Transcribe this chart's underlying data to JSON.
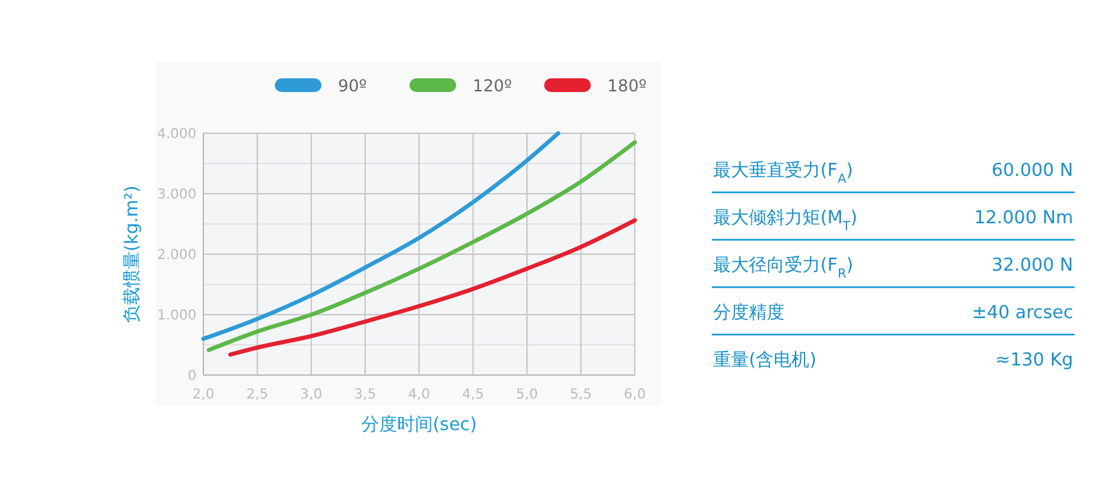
{
  "chart_data": [
    {
      "type": "line",
      "xlabel": "分度时间(sec)",
      "ylabel": "负载惯量(kg.m²)",
      "xlim": [
        2,
        6
      ],
      "ylim": [
        0,
        4000
      ],
      "xticks": [
        {
          "value": 2,
          "label": "2,0"
        },
        {
          "value": 2.5,
          "label": "2,5"
        },
        {
          "value": 3,
          "label": "3,0"
        },
        {
          "value": 3.5,
          "label": "3,5"
        },
        {
          "value": 4,
          "label": "4,0"
        },
        {
          "value": 4.5,
          "label": "4,5"
        },
        {
          "value": 5,
          "label": "5,0"
        },
        {
          "value": 5.5,
          "label": "5,5"
        },
        {
          "value": 6,
          "label": "6,0"
        }
      ],
      "yticks": [
        0,
        {
          "value": 500,
          "label": null
        },
        {
          "value": 1000,
          "label": "1.000"
        },
        {
          "value": 1500,
          "label": null
        },
        {
          "value": 2000,
          "label": "2.000"
        },
        {
          "value": 2500,
          "label": null
        },
        {
          "value": 3000,
          "label": "3.000"
        },
        {
          "value": 3500,
          "label": null
        },
        {
          "value": 4000,
          "label": "4.000"
        }
      ],
      "grid": true,
      "legend": "top right",
      "marker": "none",
      "line_style": "solid",
      "series": [
        {
          "name": "90º",
          "color": "#2e9bd6",
          "x": [
            2.0,
            2.5,
            3.0,
            3.5,
            4.0,
            4.5,
            5.0,
            5.29
          ],
          "values": [
            600,
            930,
            1320,
            1780,
            2270,
            2860,
            3550,
            4000
          ]
        },
        {
          "name": "120º",
          "color": "#5cb848",
          "x": [
            2.05,
            2.5,
            3.0,
            3.5,
            4.0,
            4.5,
            5.0,
            5.5,
            6.0
          ],
          "values": [
            415,
            720,
            1000,
            1360,
            1760,
            2200,
            2670,
            3200,
            3850
          ]
        },
        {
          "name": "180º",
          "color": "#e32130",
          "x": [
            2.25,
            2.5,
            3.0,
            3.5,
            4.0,
            4.5,
            5.0,
            5.5,
            6.0
          ],
          "values": [
            340,
            455,
            645,
            885,
            1140,
            1425,
            1760,
            2120,
            2560
          ]
        }
      ]
    },
    {
      "type": "other",
      "annotations": [
        "最大垂直受力(F$_{A}$)",
        "60.000 N",
        "最大倾斜力矩(M$_{T}$)",
        "12.000 Nm",
        "最大径向受力(F$_{R}$)",
        "32.000 N",
        "分度精度",
        "±40 arcsec",
        "重量(含电机)",
        "≈130 Kg"
      ]
    }
  ]
}
